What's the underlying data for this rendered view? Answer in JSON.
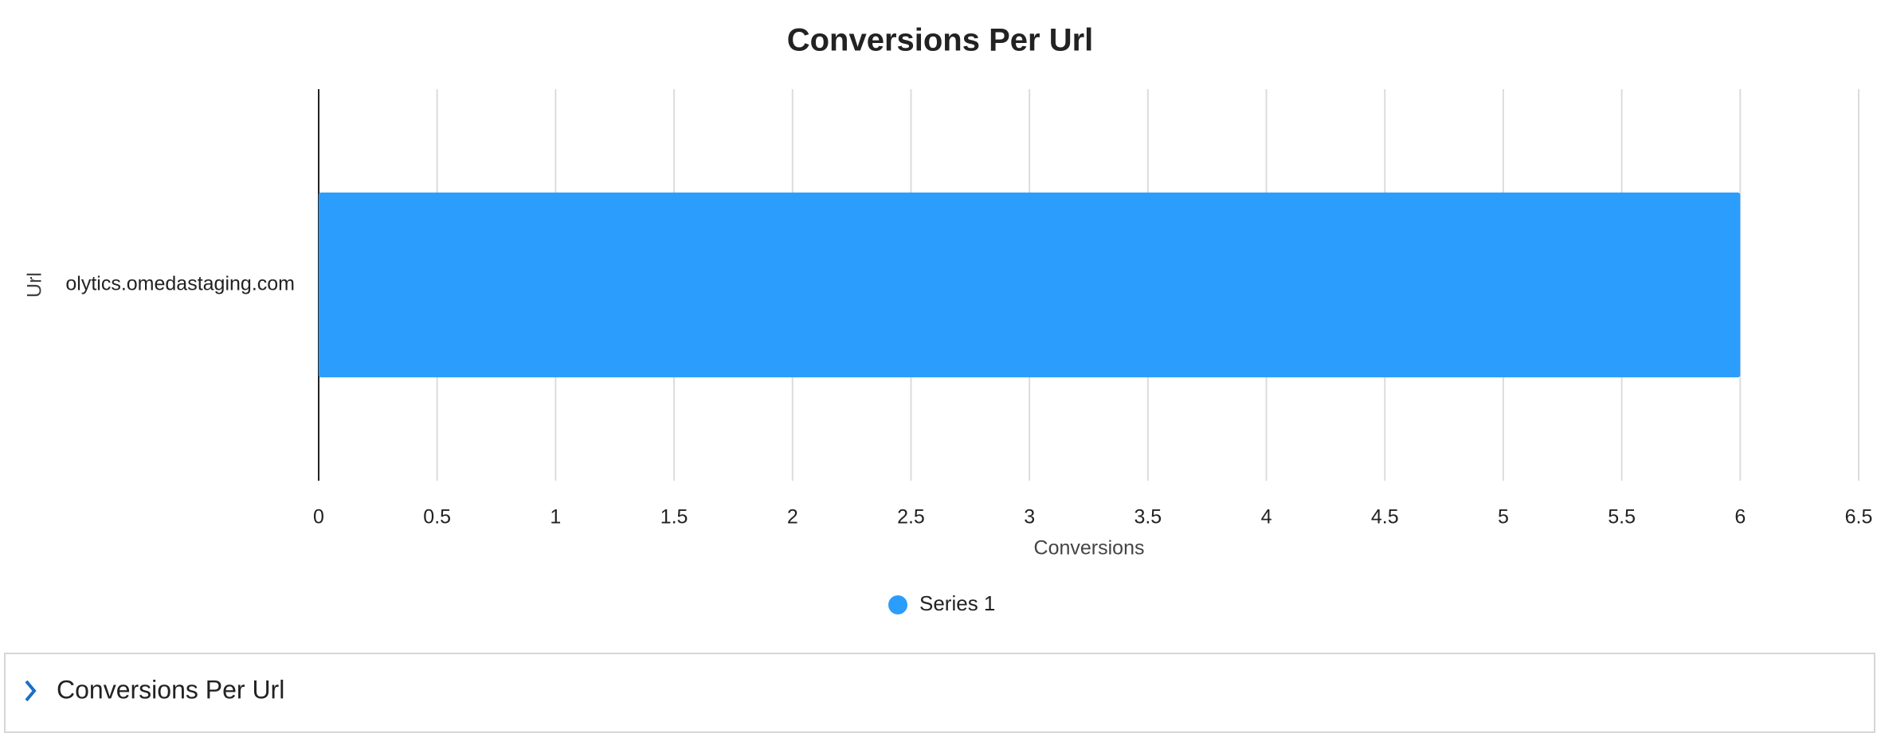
{
  "chart_data": {
    "type": "bar",
    "orientation": "horizontal",
    "title": "Conversions Per Url",
    "categories": [
      "olytics.omedastaging.com"
    ],
    "series": [
      {
        "name": "Series 1",
        "color": "#2b9dfd",
        "values": [
          6
        ]
      }
    ],
    "xlabel": "Conversions",
    "ylabel": "Url",
    "xlim": [
      0,
      6.5
    ],
    "xticks": [
      0,
      0.5,
      1,
      1.5,
      2,
      2.5,
      3,
      3.5,
      4,
      4.5,
      5,
      5.5,
      6,
      6.5
    ],
    "grid": true,
    "legend": "bottom"
  },
  "panel": {
    "title": "Conversions Per Url"
  }
}
